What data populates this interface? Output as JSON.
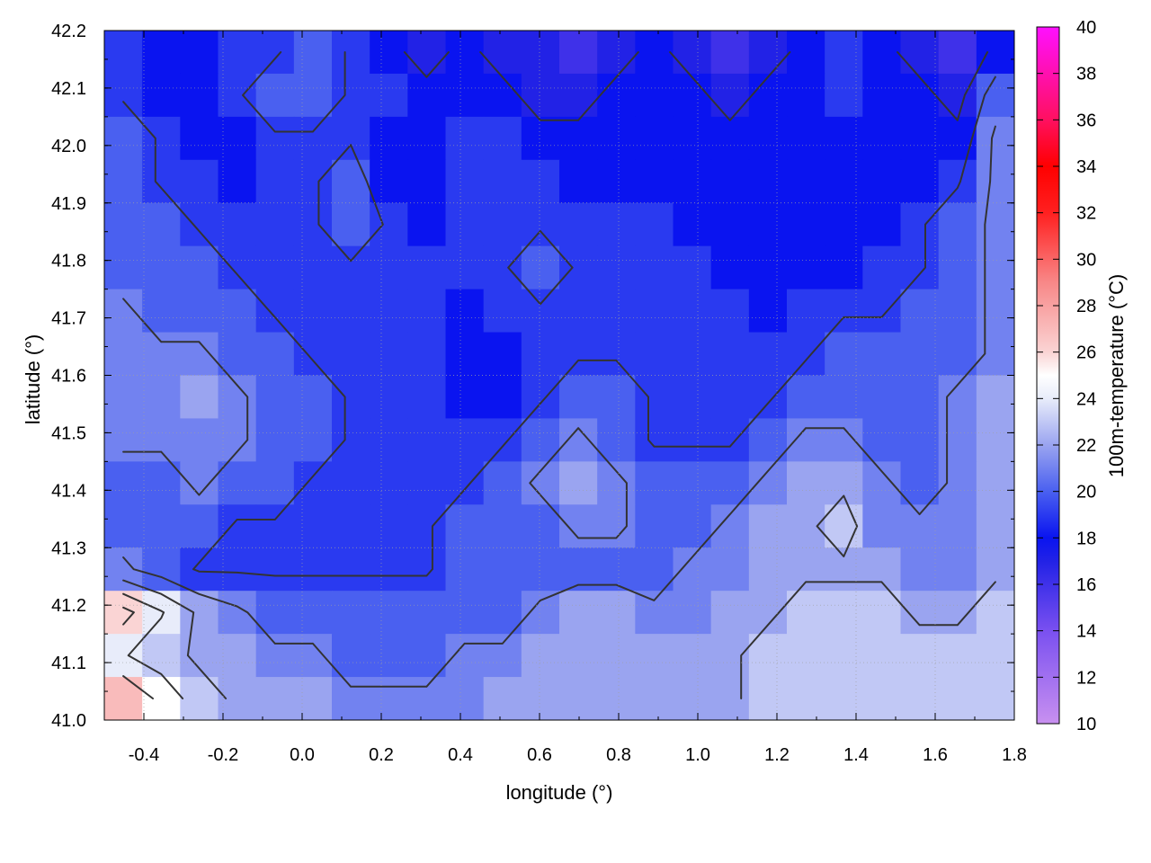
{
  "chart_data": {
    "type": "heatmap",
    "title": "",
    "xlabel": "longitude (°)",
    "ylabel": "latitude (°)",
    "colorbar_label": "100m-temperature (°C)",
    "xlim": [
      -0.5,
      1.8
    ],
    "ylim": [
      41.0,
      42.2
    ],
    "clim": [
      10,
      40
    ],
    "x_ticks": [
      "-0.4",
      "-0.2",
      "0.0",
      "0.2",
      "0.4",
      "0.6",
      "0.8",
      "1.0",
      "1.2",
      "1.4",
      "1.6",
      "1.8"
    ],
    "x_tick_values": [
      -0.4,
      -0.2,
      0.0,
      0.2,
      0.4,
      0.6,
      0.8,
      1.0,
      1.2,
      1.4,
      1.6,
      1.8
    ],
    "y_ticks": [
      "41.0",
      "41.1",
      "41.2",
      "41.3",
      "41.4",
      "41.5",
      "41.6",
      "41.7",
      "41.8",
      "41.9",
      "42.0",
      "42.1",
      "42.2"
    ],
    "y_tick_values": [
      41.0,
      41.1,
      41.2,
      41.3,
      41.4,
      41.5,
      41.6,
      41.7,
      41.8,
      41.9,
      42.0,
      42.1,
      42.2
    ],
    "colorbar_ticks": [
      "10",
      "12",
      "14",
      "16",
      "18",
      "20",
      "22",
      "24",
      "26",
      "28",
      "30",
      "32",
      "34",
      "36",
      "38",
      "40"
    ],
    "colorbar_tick_values": [
      10,
      12,
      14,
      16,
      18,
      20,
      22,
      24,
      26,
      28,
      30,
      32,
      34,
      36,
      38,
      40
    ],
    "colormap": [
      {
        "value": 10,
        "color": "#c890f0"
      },
      {
        "value": 14,
        "color": "#7a50f0"
      },
      {
        "value": 17,
        "color": "#2222e6"
      },
      {
        "value": 18,
        "color": "#0a14f0"
      },
      {
        "value": 20,
        "color": "#4a60f0"
      },
      {
        "value": 22,
        "color": "#9aa4f0"
      },
      {
        "value": 24,
        "color": "#e8ecfa"
      },
      {
        "value": 25,
        "color": "#ffffff"
      },
      {
        "value": 26,
        "color": "#fad4d4"
      },
      {
        "value": 29,
        "color": "#f88888"
      },
      {
        "value": 32,
        "color": "#ff2020"
      },
      {
        "value": 34,
        "color": "#ff0000"
      },
      {
        "value": 36,
        "color": "#ff1060"
      },
      {
        "value": 40,
        "color": "#ff10ff"
      }
    ],
    "grid": true,
    "temperature_field_rows_N_to_S": [
      [
        19,
        18,
        18,
        19,
        19,
        20,
        19,
        18,
        17,
        18,
        17,
        17,
        16,
        17,
        18,
        17,
        16,
        17,
        18,
        19,
        18,
        17,
        16,
        18
      ],
      [
        19,
        18,
        18,
        19,
        20,
        20,
        19,
        19,
        18,
        18,
        18,
        17,
        17,
        18,
        18,
        18,
        17,
        18,
        18,
        19,
        18,
        18,
        17,
        20
      ],
      [
        20,
        19,
        18,
        18,
        19,
        19,
        19,
        18,
        18,
        19,
        19,
        18,
        18,
        18,
        18,
        18,
        18,
        18,
        18,
        18,
        18,
        18,
        18,
        21
      ],
      [
        20,
        19,
        19,
        18,
        19,
        19,
        20,
        18,
        18,
        19,
        19,
        19,
        18,
        18,
        18,
        18,
        18,
        18,
        18,
        18,
        18,
        18,
        19,
        21
      ],
      [
        20,
        20,
        19,
        19,
        19,
        19,
        20,
        19,
        18,
        19,
        19,
        19,
        19,
        19,
        19,
        18,
        18,
        18,
        18,
        18,
        18,
        19,
        20,
        21
      ],
      [
        20,
        20,
        20,
        19,
        19,
        19,
        19,
        19,
        19,
        19,
        19,
        20,
        19,
        19,
        19,
        19,
        18,
        18,
        18,
        18,
        19,
        19,
        20,
        21
      ],
      [
        21,
        20,
        20,
        20,
        19,
        19,
        19,
        19,
        19,
        18,
        19,
        19,
        19,
        19,
        19,
        19,
        19,
        18,
        19,
        19,
        19,
        20,
        20,
        21
      ],
      [
        21,
        21,
        21,
        20,
        20,
        19,
        19,
        19,
        19,
        18,
        18,
        19,
        19,
        19,
        19,
        19,
        19,
        19,
        19,
        20,
        20,
        20,
        20,
        21
      ],
      [
        21,
        21,
        22,
        21,
        20,
        20,
        19,
        19,
        19,
        18,
        18,
        19,
        20,
        20,
        19,
        19,
        19,
        19,
        20,
        20,
        20,
        20,
        21,
        22
      ],
      [
        21,
        21,
        21,
        21,
        20,
        20,
        19,
        19,
        19,
        19,
        19,
        20,
        21,
        20,
        19,
        19,
        19,
        20,
        21,
        21,
        20,
        20,
        21,
        22
      ],
      [
        20,
        20,
        21,
        20,
        20,
        19,
        19,
        19,
        19,
        19,
        20,
        21,
        22,
        21,
        20,
        20,
        20,
        21,
        22,
        22,
        21,
        20,
        21,
        22
      ],
      [
        20,
        20,
        20,
        19,
        19,
        19,
        19,
        19,
        19,
        20,
        20,
        20,
        21,
        21,
        20,
        20,
        21,
        22,
        22,
        23,
        21,
        21,
        21,
        22
      ],
      [
        21,
        20,
        19,
        19,
        19,
        19,
        19,
        19,
        19,
        20,
        20,
        20,
        20,
        20,
        20,
        21,
        21,
        22,
        22,
        22,
        22,
        21,
        21,
        22
      ],
      [
        26,
        24,
        22,
        21,
        20,
        20,
        20,
        20,
        20,
        20,
        20,
        21,
        22,
        22,
        21,
        21,
        22,
        22,
        23,
        23,
        23,
        22,
        22,
        23
      ],
      [
        24,
        23,
        22,
        22,
        21,
        21,
        20,
        20,
        20,
        21,
        21,
        22,
        22,
        22,
        22,
        22,
        22,
        23,
        23,
        23,
        23,
        23,
        23,
        23
      ],
      [
        27,
        25,
        23,
        22,
        22,
        22,
        21,
        21,
        21,
        21,
        22,
        22,
        22,
        22,
        22,
        22,
        22,
        23,
        23,
        23,
        23,
        23,
        23,
        23
      ]
    ],
    "contour_levels": 6
  }
}
